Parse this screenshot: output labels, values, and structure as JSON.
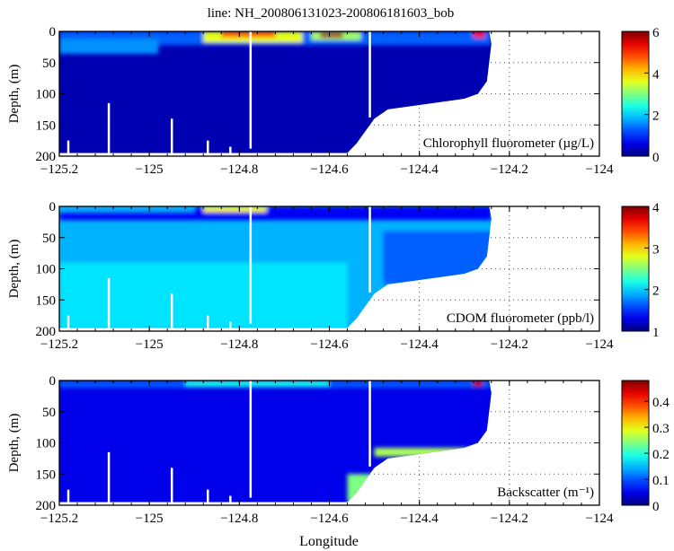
{
  "chart_data": {
    "type": "heatmap",
    "title": "line: NH_200806131023-200806181603_bob",
    "xlabel": "Longitude",
    "ylabel": "Depth, (m)",
    "xlim": [
      -125.2,
      -124
    ],
    "ylim": [
      200,
      0
    ],
    "xticks": [
      -125.2,
      -125,
      -124.8,
      -124.6,
      -124.4,
      -124.2,
      -124
    ],
    "yticks": [
      0,
      50,
      100,
      150,
      200
    ],
    "grid": "dotted",
    "section_bottom": [
      [
        -125.2,
        195
      ],
      [
        -124.56,
        195
      ],
      [
        -124.54,
        180
      ],
      [
        -124.5,
        140
      ],
      [
        -124.47,
        125
      ],
      [
        -124.4,
        118
      ],
      [
        -124.3,
        108
      ],
      [
        -124.27,
        100
      ],
      [
        -124.25,
        80
      ],
      [
        -124.245,
        50
      ],
      [
        -124.24,
        20
      ],
      [
        -124.245,
        0
      ]
    ],
    "gaps": [
      {
        "lon": -124.775,
        "depth": [
          0,
          188
        ]
      },
      {
        "lon": -124.51,
        "depth": [
          0,
          138
        ]
      },
      {
        "lon": -125.09,
        "depth": [
          115,
          195
        ]
      },
      {
        "lon": -124.95,
        "depth": [
          140,
          195
        ]
      },
      {
        "lon": -125.18,
        "depth": [
          175,
          195
        ]
      },
      {
        "lon": -124.87,
        "depth": [
          175,
          195
        ]
      },
      {
        "lon": -124.82,
        "depth": [
          185,
          195
        ]
      }
    ],
    "panels": [
      {
        "label": "Chlorophyll fluorometer (µg/L)",
        "clim": [
          0,
          6
        ],
        "cticks": [
          0,
          2,
          4,
          6
        ],
        "background_value": 0.3,
        "features": [
          {
            "lon": [
              -125.2,
              -124.24
            ],
            "depth": [
              0,
              22
            ],
            "value": 1.3
          },
          {
            "lon": [
              -125.2,
              -124.98
            ],
            "depth": [
              12,
              36
            ],
            "value": 1.6
          },
          {
            "lon": [
              -124.88,
              -124.66
            ],
            "depth": [
              0,
              18
            ],
            "value": 3.6
          },
          {
            "lon": [
              -124.84,
              -124.72
            ],
            "depth": [
              0,
              10
            ],
            "value": 4.6
          },
          {
            "lon": [
              -124.64,
              -124.53
            ],
            "depth": [
              0,
              14
            ],
            "value": 3.2
          },
          {
            "lon": [
              -124.62,
              -124.57
            ],
            "depth": [
              2,
              10
            ],
            "value": 5.8
          },
          {
            "lon": [
              -124.28,
              -124.255
            ],
            "depth": [
              0,
              10
            ],
            "value": 5.2
          }
        ]
      },
      {
        "label": "CDOM fluorometer (ppb/l)",
        "clim": [
          1,
          4
        ],
        "cticks": [
          1,
          2,
          3,
          4
        ],
        "background_value": 1.9,
        "features": [
          {
            "lon": [
              -125.2,
              -124.24
            ],
            "depth": [
              0,
              22
            ],
            "value": 1.35
          },
          {
            "lon": [
              -125.2,
              -124.9
            ],
            "depth": [
              0,
              8
            ],
            "value": 1.9
          },
          {
            "lon": [
              -124.88,
              -124.74
            ],
            "depth": [
              0,
              9
            ],
            "value": 2.9
          },
          {
            "lon": [
              -125.2,
              -124.56
            ],
            "depth": [
              90,
              195
            ],
            "value": 2.05
          },
          {
            "lon": [
              -124.48,
              -124.24
            ],
            "depth": [
              40,
              125
            ],
            "value": 1.65
          }
        ]
      },
      {
        "label": "Backscatter (m⁻¹)",
        "clim": [
          0,
          0.48
        ],
        "cticks": [
          0,
          0.1,
          0.2,
          0.3,
          0.4
        ],
        "background_value": 0.05,
        "features": [
          {
            "lon": [
              -125.2,
              -124.24
            ],
            "depth": [
              0,
              12
            ],
            "value": 0.1
          },
          {
            "lon": [
              -124.92,
              -124.6
            ],
            "depth": [
              0,
              9
            ],
            "value": 0.19
          },
          {
            "lon": [
              -124.56,
              -124.5
            ],
            "depth": [
              150,
              195
            ],
            "value": 0.24
          },
          {
            "lon": [
              -124.5,
              -124.25
            ],
            "depth": [
              108,
              122
            ],
            "value": 0.26
          },
          {
            "lon": [
              -124.28,
              -124.26
            ],
            "depth": [
              0,
              10
            ],
            "value": 0.45
          }
        ]
      }
    ]
  }
}
